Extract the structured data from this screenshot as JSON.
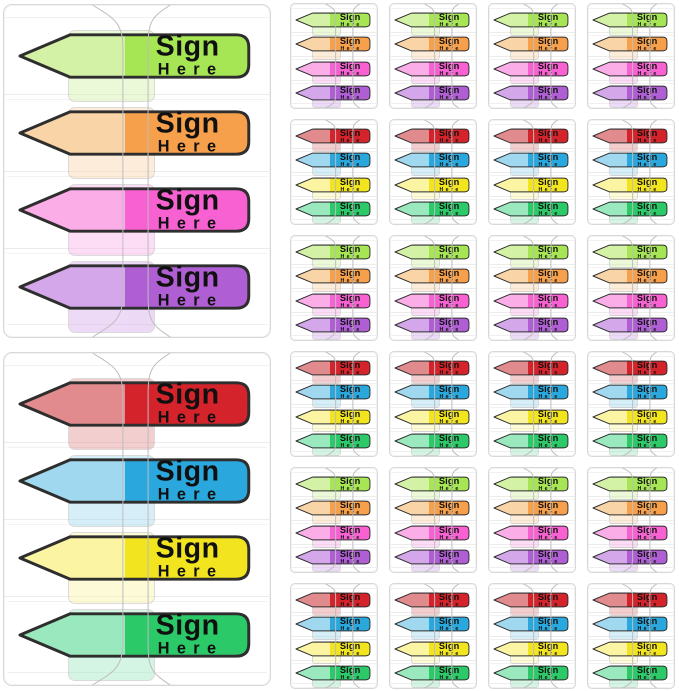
{
  "image": {
    "description": "Product photo of Sign Here arrow flag sticky index tabs: two large dispensers and 24 small four-color packs",
    "background": "#ffffff"
  },
  "flag_text": {
    "line1": "Sign",
    "line2": "Here"
  },
  "palette": {
    "green": {
      "solid": "#a6e553",
      "light": "#d4f2a6"
    },
    "orange": {
      "solid": "#f7a04c",
      "light": "#f9d4a6"
    },
    "pink": {
      "solid": "#f861d2",
      "light": "#fbade8"
    },
    "purple": {
      "solid": "#af5ed3",
      "light": "#d3a7e9"
    },
    "red": {
      "solid": "#d4232a",
      "light": "#e28b8f"
    },
    "blue": {
      "solid": "#2aa7dc",
      "light": "#a0d8f0"
    },
    "yellow": {
      "solid": "#f2e520",
      "light": "#fbf4a3"
    },
    "mint": {
      "solid": "#2bc968",
      "light": "#9ae8bd"
    }
  },
  "large_dispensers": [
    {
      "flags": [
        "green",
        "orange",
        "pink",
        "purple"
      ]
    },
    {
      "flags": [
        "red",
        "blue",
        "yellow",
        "mint"
      ]
    }
  ],
  "small_packs": {
    "columns": 4,
    "rows": [
      {
        "flags": [
          "green",
          "orange",
          "pink",
          "purple"
        ]
      },
      {
        "flags": [
          "red",
          "blue",
          "yellow",
          "mint"
        ]
      },
      {
        "flags": [
          "green",
          "orange",
          "pink",
          "purple"
        ]
      },
      {
        "flags": [
          "red",
          "blue",
          "yellow",
          "mint"
        ]
      },
      {
        "flags": [
          "green",
          "orange",
          "pink",
          "purple"
        ]
      },
      {
        "flags": [
          "red",
          "blue",
          "yellow",
          "mint"
        ]
      }
    ]
  },
  "style": {
    "flag_outline": "#2e2e2e",
    "panel_border": "#d8d8d8",
    "cover_seam_line": "#bdbdbd",
    "slot_separator_line": "#ececec",
    "flag_text_color": "#101010"
  }
}
